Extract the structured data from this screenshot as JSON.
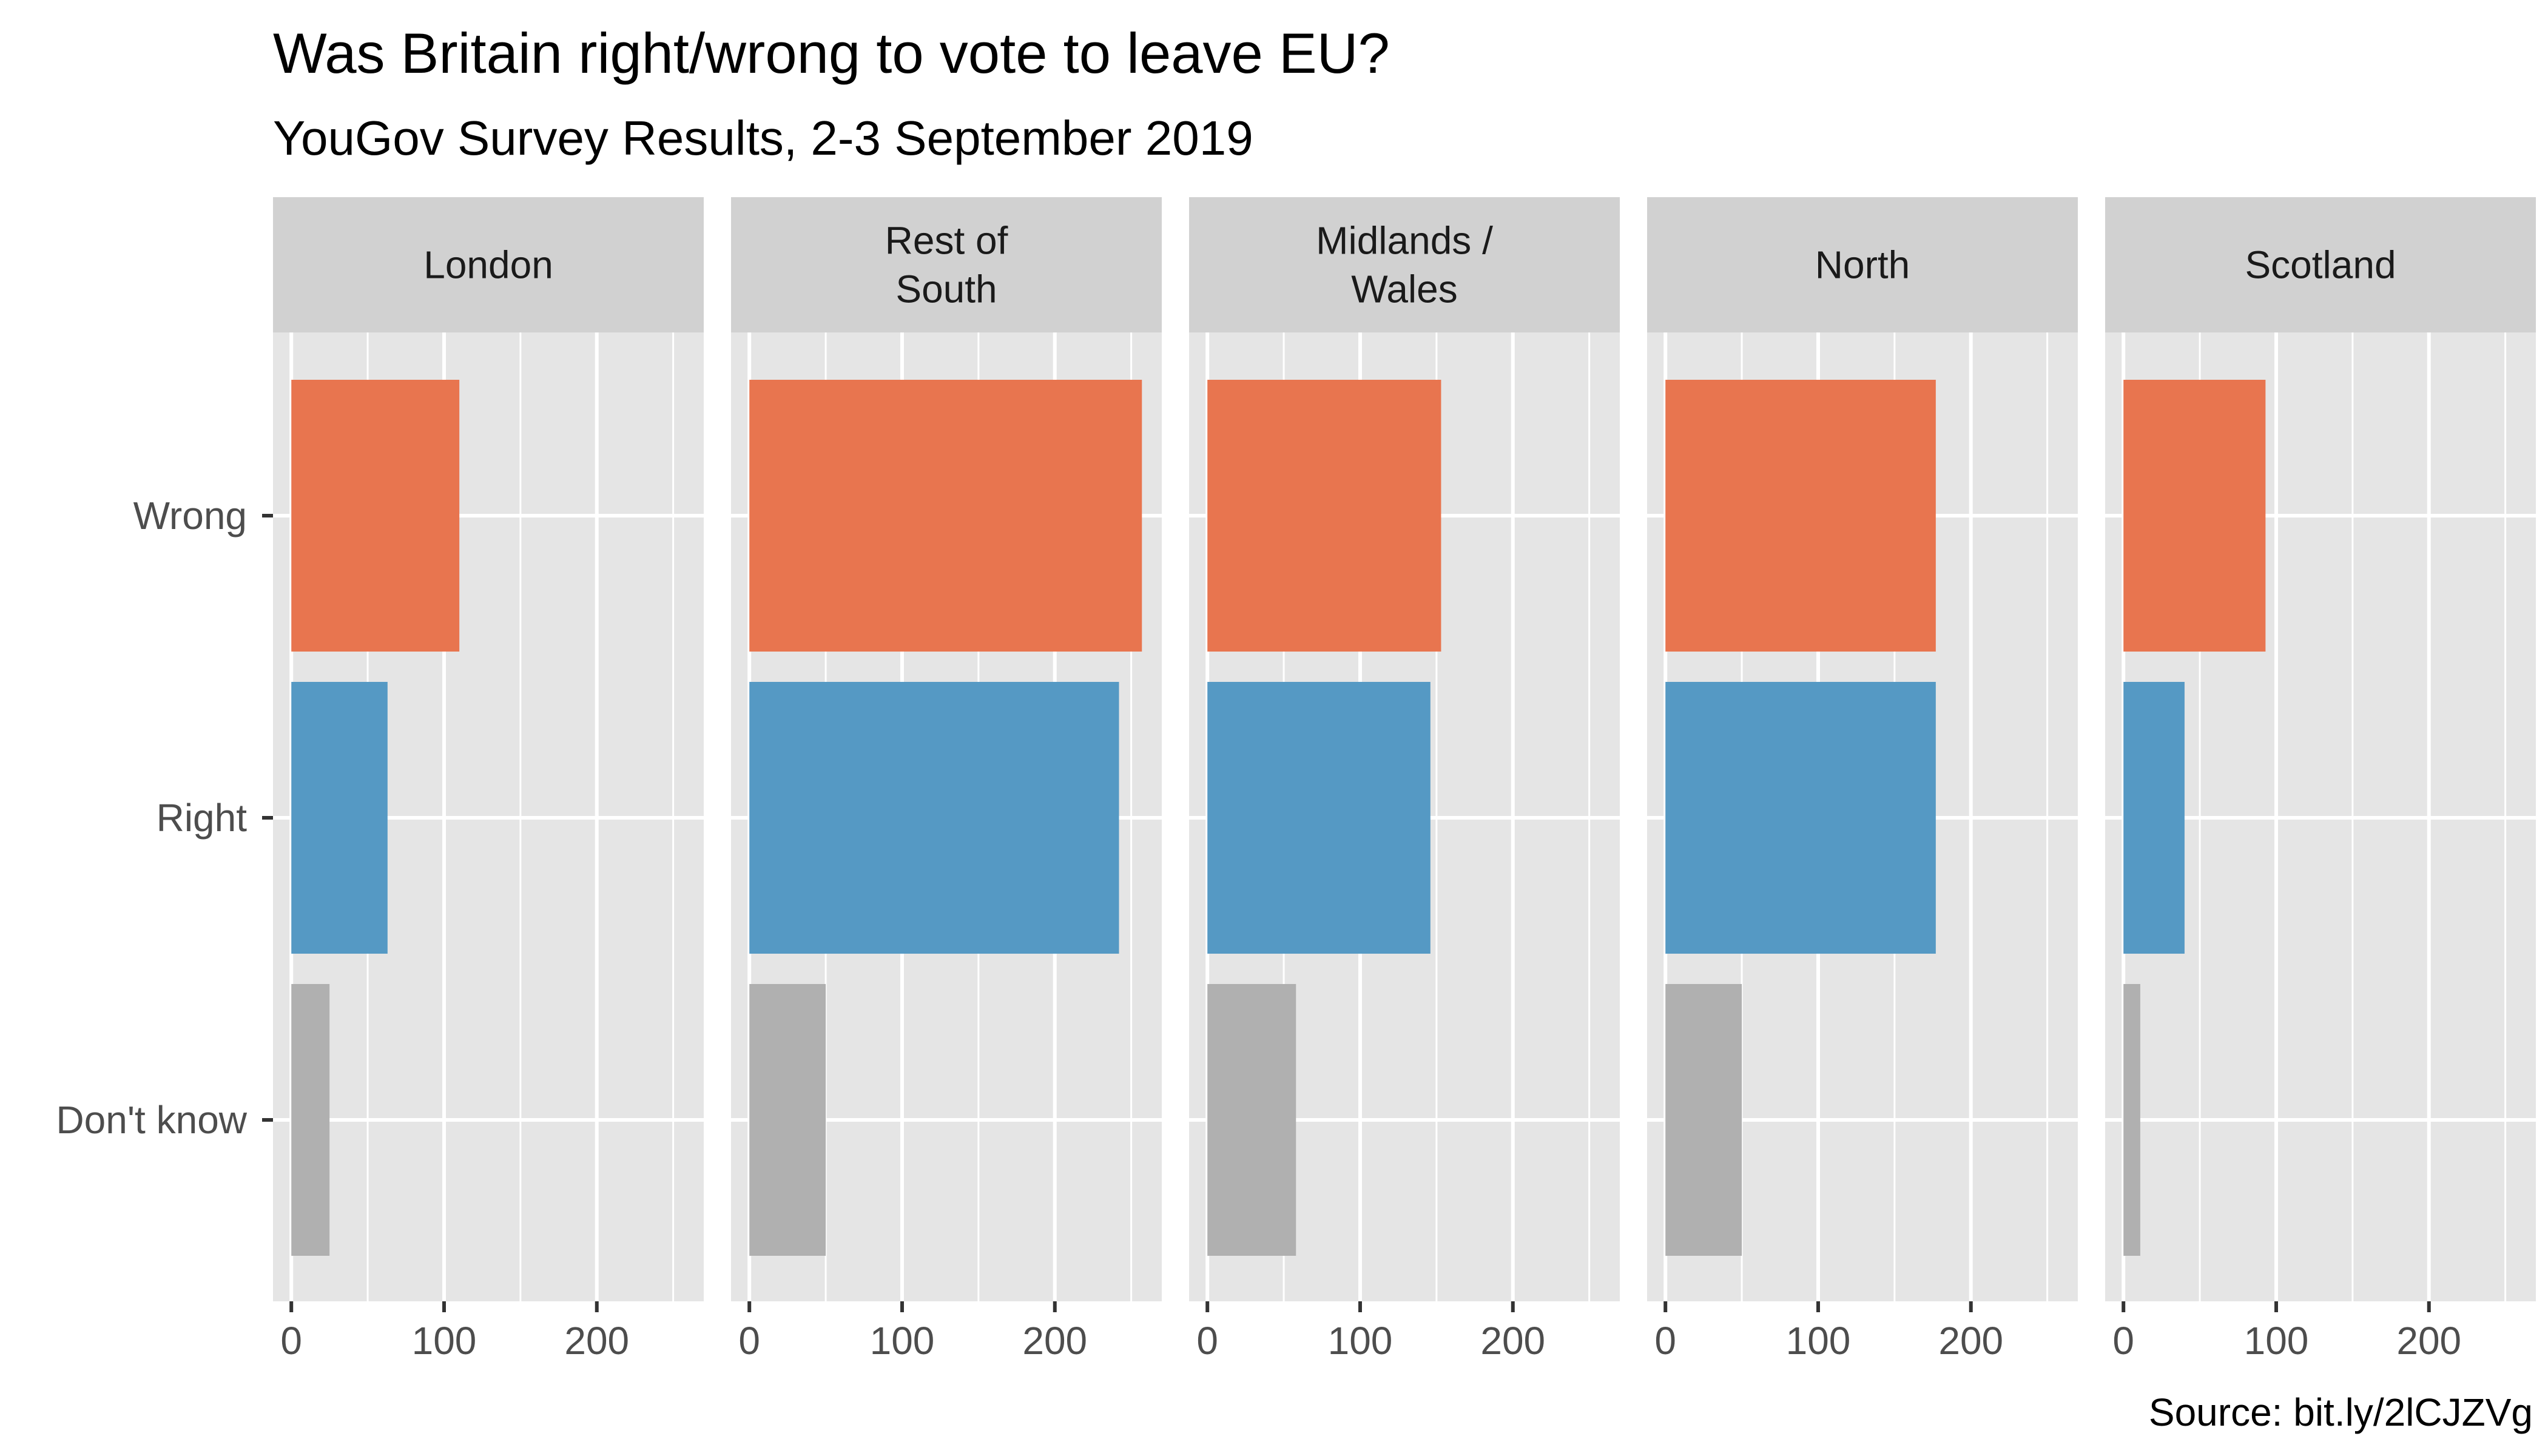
{
  "title": "Was Britain right/wrong to vote to leave EU?",
  "subtitle": "YouGov Survey Results, 2-3 September 2019",
  "caption": "Source: bit.ly/2lCJZVg",
  "colors": {
    "Wrong": "#E8754F",
    "Right": "#5599C4",
    "Don't know": "#B0B0B0",
    "panel_bg": "#E5E5E5",
    "strip_bg": "#D1D1D1",
    "grid": "#FFFFFF"
  },
  "chart_data": {
    "type": "bar",
    "orientation": "horizontal",
    "facets": [
      "London",
      "Rest of South",
      "Midlands / Wales",
      "North",
      "Scotland"
    ],
    "facet_labels": [
      [
        "London"
      ],
      [
        "Rest of",
        "South"
      ],
      [
        "Midlands /",
        "Wales"
      ],
      [
        "North"
      ],
      [
        "Scotland"
      ]
    ],
    "categories": [
      "Wrong",
      "Right",
      "Don't know"
    ],
    "x_ticks": [
      0,
      100,
      200
    ],
    "xlim": [
      -12,
      270
    ],
    "grid": true,
    "legend": "none",
    "values": {
      "London": {
        "Wrong": 110,
        "Right": 63,
        "Don't know": 25
      },
      "Rest of South": {
        "Wrong": 257,
        "Right": 242,
        "Don't know": 50
      },
      "Midlands / Wales": {
        "Wrong": 153,
        "Right": 146,
        "Don't know": 58
      },
      "North": {
        "Wrong": 177,
        "Right": 177,
        "Don't know": 50
      },
      "Scotland": {
        "Wrong": 93,
        "Right": 40,
        "Don't know": 11
      }
    }
  }
}
